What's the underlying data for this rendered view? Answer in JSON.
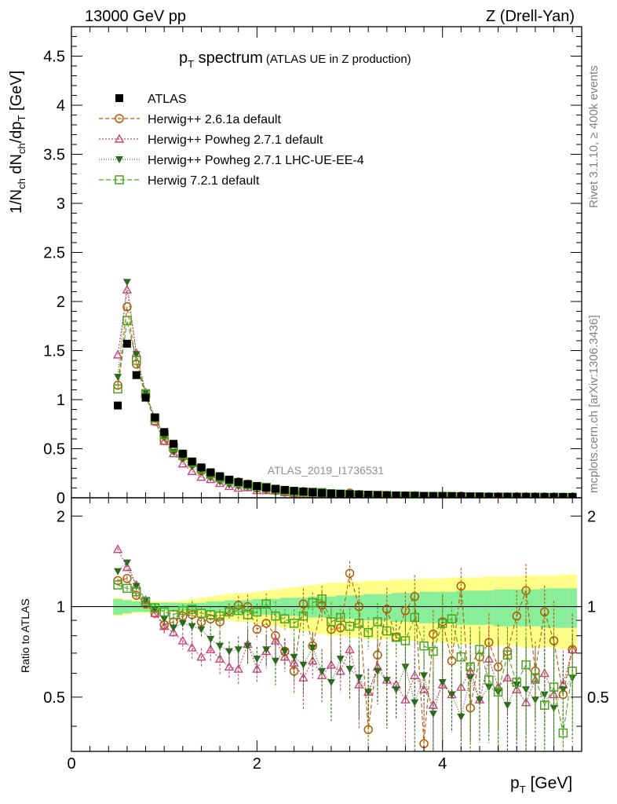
{
  "header": {
    "left": "13000 GeV pp",
    "right": "Z (Drell-Yan)"
  },
  "side": {
    "rivet": "Rivet 3.1.10, ≥ 400k events",
    "mcplots": "mcplots.cern.ch [arXiv:1306.3436]"
  },
  "chart_data": {
    "type": "scatter",
    "title_main": "p",
    "title_sub": "T",
    "title_rest": " spectrum",
    "title_note": "(ATLAS UE in Z production)",
    "analysis_id": "ATLAS_2019_I1736531",
    "ylabel": "1/N_ch dN_ch/dp_T [GeV]",
    "ratio_ylabel": "Ratio to ATLAS",
    "xlabel": "p_T [GeV]",
    "xlim": [
      0,
      5.5
    ],
    "ylim_main": [
      0,
      4.8
    ],
    "ylim_ratio": [
      0.33,
      2.3
    ],
    "xticks": [
      "0",
      "2",
      "4"
    ],
    "yticks_main": [
      "0",
      "0.5",
      "1",
      "1.5",
      "2",
      "2.5",
      "3",
      "3.5",
      "4",
      "4.5"
    ],
    "yticks_ratio": [
      "0.5",
      "1",
      "2"
    ],
    "x": [
      0.5,
      0.6,
      0.7,
      0.8,
      0.9,
      1.0,
      1.1,
      1.2,
      1.3,
      1.4,
      1.5,
      1.6,
      1.7,
      1.8,
      1.9,
      2.0,
      2.1,
      2.2,
      2.3,
      2.4,
      2.5,
      2.6,
      2.7,
      2.8,
      2.9,
      3.0,
      3.1,
      3.2,
      3.3,
      3.4,
      3.5,
      3.6,
      3.7,
      3.8,
      3.9,
      4.0,
      4.1,
      4.2,
      4.3,
      4.4,
      4.5,
      4.6,
      4.7,
      4.8,
      4.9,
      5.0,
      5.1,
      5.2,
      5.3,
      5.4
    ],
    "data": [
      0.94,
      1.57,
      1.25,
      1.02,
      0.82,
      0.67,
      0.55,
      0.45,
      0.37,
      0.31,
      0.26,
      0.22,
      0.185,
      0.16,
      0.14,
      0.12,
      0.105,
      0.092,
      0.081,
      0.071,
      0.063,
      0.056,
      0.05,
      0.045,
      0.041,
      0.037,
      0.034,
      0.031,
      0.028,
      0.026,
      0.024,
      0.022,
      0.02,
      0.019,
      0.018,
      0.017,
      0.016,
      0.015,
      0.014,
      0.013,
      0.012,
      0.012,
      0.011,
      0.011,
      0.01,
      0.01,
      0.009,
      0.009,
      0.009,
      0.008
    ],
    "band_inner": [
      0.06,
      0.05,
      0.04,
      0.04,
      0.03,
      0.03,
      0.03,
      0.03,
      0.03,
      0.03,
      0.04,
      0.04,
      0.05,
      0.05,
      0.05,
      0.06,
      0.06,
      0.06,
      0.07,
      0.07,
      0.07,
      0.08,
      0.08,
      0.08,
      0.09,
      0.09,
      0.09,
      0.1,
      0.1,
      0.1,
      0.11,
      0.11,
      0.11,
      0.12,
      0.12,
      0.12,
      0.12,
      0.13,
      0.13,
      0.13,
      0.13,
      0.14,
      0.14,
      0.14,
      0.14,
      0.14,
      0.15,
      0.15,
      0.15,
      0.15
    ],
    "band_outer": [
      0.07,
      0.06,
      0.05,
      0.05,
      0.04,
      0.04,
      0.04,
      0.05,
      0.06,
      0.07,
      0.08,
      0.09,
      0.1,
      0.11,
      0.11,
      0.12,
      0.13,
      0.14,
      0.15,
      0.16,
      0.17,
      0.18,
      0.19,
      0.2,
      0.2,
      0.21,
      0.21,
      0.22,
      0.22,
      0.22,
      0.23,
      0.23,
      0.23,
      0.24,
      0.24,
      0.24,
      0.25,
      0.25,
      0.25,
      0.25,
      0.26,
      0.26,
      0.26,
      0.26,
      0.27,
      0.27,
      0.27,
      0.27,
      0.28,
      0.28
    ],
    "series": [
      {
        "name": "ATLAS",
        "color": "#000000",
        "marker": "filled-square",
        "dash": "",
        "ratio": []
      },
      {
        "name": "Herwig++ 2.6.1a default",
        "color": "#b35900",
        "marker": "open-circle",
        "dash": "5,3",
        "ratio": [
          1.22,
          1.24,
          1.09,
          1.02,
          0.95,
          0.87,
          0.89,
          0.93,
          0.94,
          0.89,
          0.91,
          0.89,
          0.97,
          1.01,
          1.0,
          0.84,
          0.88,
          0.8,
          0.71,
          0.61,
          1.02,
          0.74,
          1.01,
          0.84,
          0.85,
          1.29,
          1.0,
          0.39,
          0.69,
          0.98,
          0.79,
          0.97,
          1.08,
          0.35,
          0.81,
          0.89,
          0.66,
          1.17,
          0.46,
          0.68,
          0.76,
          0.63,
          0.71,
          0.93,
          1.13,
          0.61,
          0.96,
          0.77,
          0.51,
          0.72
        ]
      },
      {
        "name": "Herwig++ Powheg 2.7.1 default",
        "color": "#cc4477",
        "marker": "open-triangle",
        "dash": "2,2",
        "ratio": [
          1.55,
          1.35,
          1.18,
          1.05,
          0.95,
          0.86,
          0.82,
          0.77,
          0.73,
          0.68,
          0.72,
          0.67,
          0.63,
          0.62,
          0.75,
          0.62,
          0.71,
          0.77,
          0.68,
          0.65,
          0.58,
          0.66,
          0.59,
          0.64,
          0.61,
          0.72,
          0.55,
          0.52,
          0.63,
          0.57,
          0.55,
          0.49,
          0.59,
          0.53,
          0.47,
          0.55,
          0.51,
          0.54,
          0.61,
          0.49,
          0.67,
          0.54,
          0.58,
          0.53,
          0.48,
          0.57,
          0.6,
          0.51,
          0.55,
          0.72
        ]
      },
      {
        "name": "Herwig++ Powheg 2.7.1 LHC-UE-EE-4",
        "color": "#2d6a1f",
        "marker": "filled-triangle-down",
        "dash": "1,2",
        "ratio": [
          1.31,
          1.4,
          1.17,
          1.05,
          0.98,
          0.91,
          0.85,
          0.88,
          0.86,
          0.84,
          0.78,
          0.74,
          0.71,
          0.72,
          0.74,
          0.67,
          0.72,
          0.66,
          0.71,
          0.68,
          0.64,
          0.73,
          0.61,
          0.56,
          0.67,
          0.62,
          0.58,
          0.52,
          0.61,
          0.57,
          0.53,
          0.63,
          0.48,
          0.59,
          0.44,
          0.56,
          0.51,
          0.43,
          0.58,
          0.49,
          0.54,
          0.52,
          0.47,
          0.55,
          0.53,
          0.49,
          0.51,
          0.46,
          0.53,
          0.58
        ]
      },
      {
        "name": "Herwig 7.2.1 default",
        "color": "#4aa31e",
        "marker": "open-square",
        "dash": "6,3",
        "ratio": [
          1.18,
          1.15,
          1.12,
          1.04,
          0.99,
          0.96,
          0.94,
          0.97,
          0.98,
          0.95,
          0.94,
          0.93,
          0.96,
          0.97,
          0.94,
          0.96,
          1.02,
          0.93,
          0.91,
          0.88,
          0.93,
          1.03,
          1.06,
          0.89,
          0.92,
          0.86,
          0.88,
          0.82,
          0.89,
          0.83,
          0.79,
          0.77,
          0.92,
          0.74,
          0.71,
          0.88,
          0.91,
          0.68,
          0.63,
          0.72,
          0.57,
          0.52,
          0.69,
          0.56,
          0.64,
          0.58,
          0.47,
          0.54,
          0.38,
          0.61
        ]
      }
    ]
  }
}
